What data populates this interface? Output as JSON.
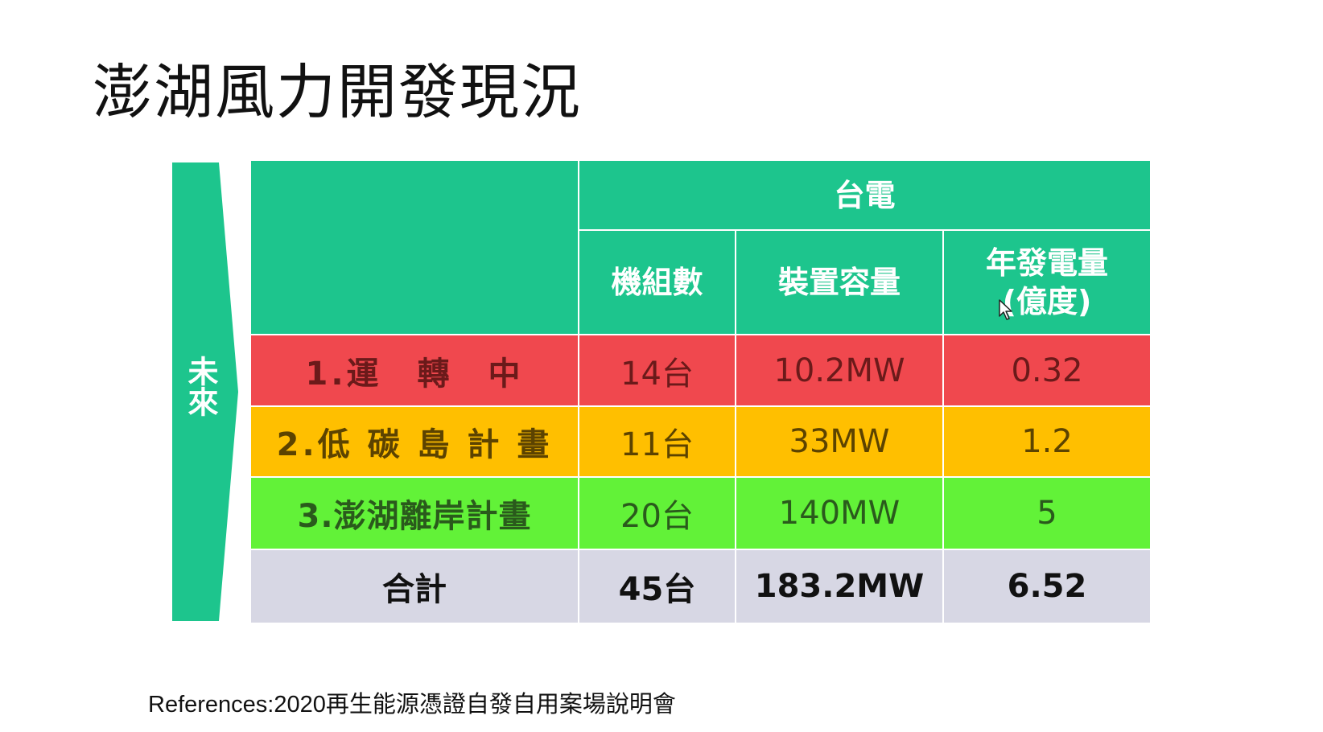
{
  "slide": {
    "title": "澎湖風力開發現況",
    "reference": "References:2020再生能源憑證自發自用案場說明會"
  },
  "side_arrow": {
    "label": "未來",
    "color": "#1dc58d"
  },
  "table": {
    "group_header": "台電",
    "columns": [
      "機組數",
      "裝置容量",
      "年發電量\n(億度)"
    ],
    "rows": [
      {
        "label": "1.運　轉　中",
        "units": "14台",
        "capacity": "10.2MW",
        "generation": "0.32",
        "color": "#f0484e"
      },
      {
        "label": "2.低 碳 島 計 畫",
        "units": "11台",
        "capacity": "33MW",
        "generation": "1.2",
        "color": "#ffbf00"
      },
      {
        "label": "3.澎湖離岸計畫",
        "units": "20台",
        "capacity": "140MW",
        "generation": "5",
        "color": "#62f238"
      },
      {
        "label": "合計",
        "units": "45台",
        "capacity": "183.2MW",
        "generation": "6.52",
        "color": "#d7d7e4"
      }
    ]
  },
  "colors": {
    "header": "#1dc58d",
    "text_header": "#ffffff"
  },
  "icons": {
    "cursor": "mouse-pointer-icon"
  }
}
